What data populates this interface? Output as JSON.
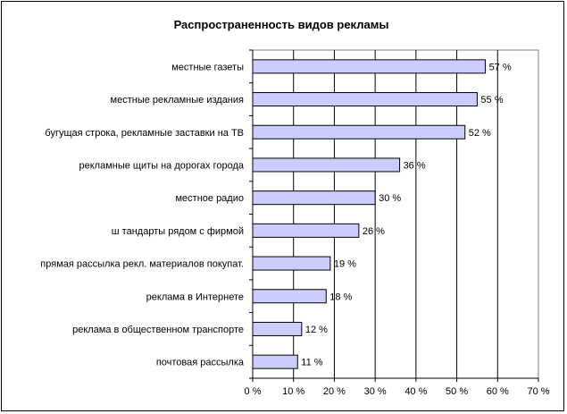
{
  "chart_data": {
    "type": "bar",
    "orientation": "horizontal",
    "title": "Распространенность видов рекламы",
    "categories": [
      "местные газеты",
      "местные рекламные издания",
      "бугущая строка, рекламные заставки на ТВ",
      "рекламные щиты на дорогах города",
      "местное радио",
      "ш тандарты рядом с фирмой",
      "прямая рассылка рекл. материалов покупат.",
      "реклама в Интернете",
      "реклама в общественном транспорте",
      "почтовая рассылка"
    ],
    "values": [
      57,
      55,
      52,
      36,
      30,
      26,
      19,
      18,
      12,
      11
    ],
    "data_labels": [
      "57 %",
      "55 %",
      "52 %",
      "36 %",
      "30 %",
      "26 %",
      "19 %",
      "18 %",
      "12 %",
      "11 %"
    ],
    "xticks": [
      "0 %",
      "10 %",
      "20 %",
      "30 %",
      "40 %",
      "50 %",
      "60 %",
      "70 %"
    ],
    "xlim": [
      0,
      70
    ],
    "xlabel": "",
    "ylabel": "",
    "grid": "vertical",
    "bar_color": "#CCCCFF",
    "legend": "none"
  }
}
